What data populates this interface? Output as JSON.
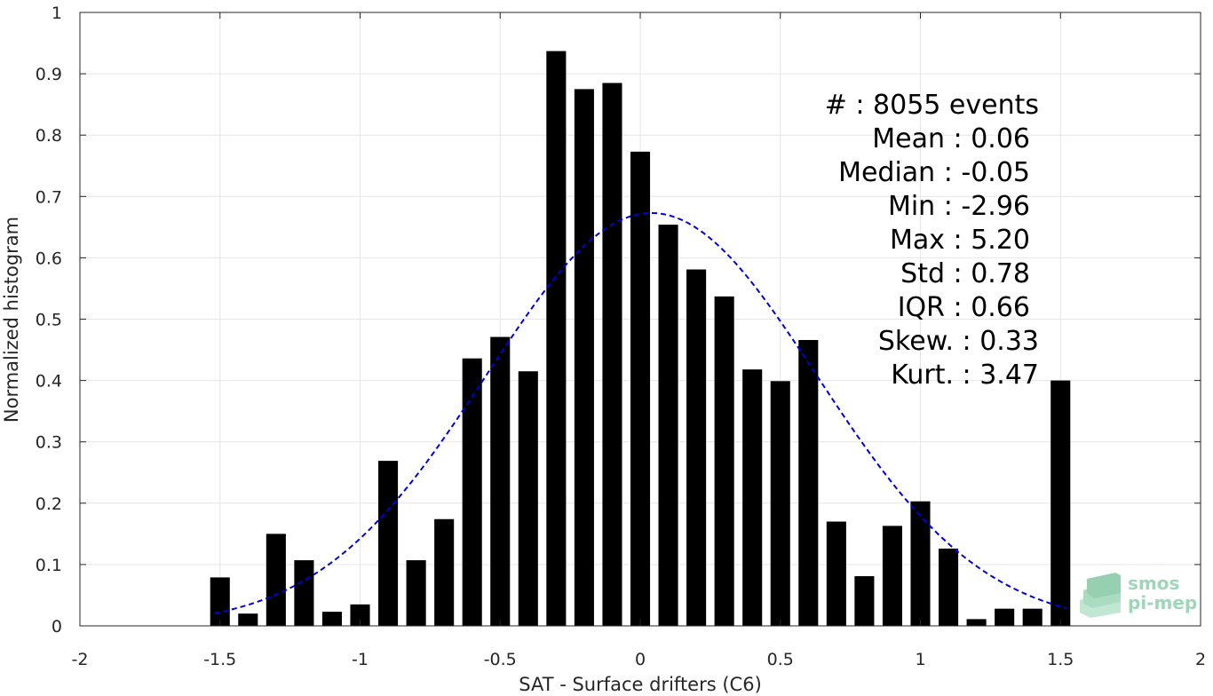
{
  "chart_data": {
    "type": "bar",
    "xlabel": "SAT - Surface drifters (C6)",
    "ylabel": "Normalized histogram",
    "xlim": [
      -2,
      2
    ],
    "ylim": [
      0,
      1
    ],
    "xticks": [
      "-2",
      "-1.5",
      "-1",
      "-0.5",
      "0",
      "0.5",
      "1",
      "1.5",
      "2"
    ],
    "yticks": [
      "0",
      "0.1",
      "0.2",
      "0.3",
      "0.4",
      "0.5",
      "0.6",
      "0.7",
      "0.8",
      "0.9",
      "1"
    ],
    "grid": true,
    "bar_color": "#000000",
    "bars": {
      "x": [
        -1.5,
        -1.4,
        -1.3,
        -1.2,
        -1.1,
        -1.0,
        -0.9,
        -0.8,
        -0.7,
        -0.6,
        -0.5,
        -0.4,
        -0.3,
        -0.2,
        -0.1,
        0.0,
        0.1,
        0.2,
        0.3,
        0.4,
        0.5,
        0.6,
        0.7,
        0.8,
        0.9,
        1.0,
        1.1,
        1.2,
        1.3,
        1.4,
        1.5
      ],
      "values": [
        0.079,
        0.02,
        0.15,
        0.107,
        0.023,
        0.035,
        0.269,
        0.107,
        0.174,
        0.436,
        0.471,
        0.415,
        0.937,
        0.875,
        0.885,
        0.773,
        0.654,
        0.581,
        0.537,
        0.418,
        0.399,
        0.466,
        0.17,
        0.081,
        0.163,
        0.203,
        0.126,
        0.011,
        0.028,
        0.028,
        0.4
      ]
    },
    "fit": {
      "style": "dashed",
      "color": "#0000dd",
      "mean": 0.04,
      "std": 0.59,
      "peak": 0.673,
      "x_range": [
        -1.52,
        1.52
      ]
    },
    "stats": [
      "#  : 8055 events",
      "Mean : 0.06",
      "Median : -0.05",
      "Min : -2.96",
      "Max : 5.20",
      "Std : 0.78",
      "IQR : 0.66",
      "Skew. : 0.33",
      "Kurt. : 3.47"
    ],
    "logo": [
      "smos",
      "pi-mep"
    ]
  }
}
